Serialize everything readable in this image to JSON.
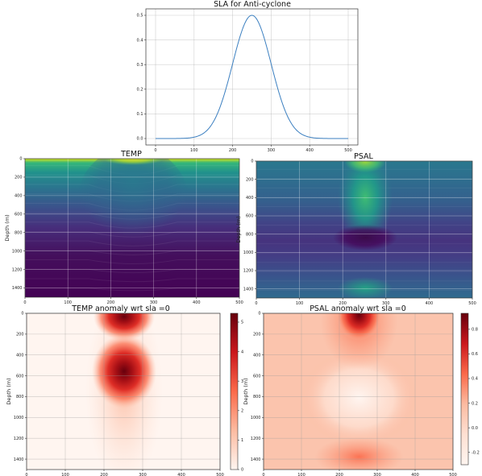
{
  "chart_data": [
    {
      "type": "line",
      "title": "SLA for Anti-cyclone",
      "x_ticks": [
        0,
        100,
        200,
        300,
        400,
        500
      ],
      "y_ticks": [
        0.0,
        0.1,
        0.2,
        0.3,
        0.4,
        0.5
      ],
      "xlim": [
        0,
        500
      ],
      "ylim": [
        0,
        0.5
      ],
      "grid": true,
      "series": [
        {
          "color": "#3b7fc0",
          "x": [
            0,
            50,
            100,
            125,
            150,
            175,
            200,
            212,
            225,
            237,
            250,
            262,
            275,
            287,
            300,
            325,
            350,
            375,
            400,
            450,
            500
          ],
          "y": [
            0.0,
            0.0,
            0.0,
            0.001,
            0.006,
            0.027,
            0.1,
            0.167,
            0.25,
            0.334,
            0.5,
            0.334,
            0.25,
            0.167,
            0.1,
            0.027,
            0.006,
            0.001,
            0.0,
            0.0,
            0.0
          ]
        }
      ]
    },
    {
      "type": "heatmap",
      "title": "TEMP",
      "ylabel": "Depth (m)",
      "x_ticks": [
        0,
        100,
        200,
        300,
        400,
        500
      ],
      "y_ticks": [
        0,
        200,
        400,
        600,
        800,
        1000,
        1200,
        1400
      ],
      "xlim": [
        0,
        500
      ],
      "ylim": [
        1500,
        0
      ],
      "colormap": "viridis",
      "grid": true
    },
    {
      "type": "heatmap",
      "title": "PSAL",
      "ylabel": "Depth (m)",
      "x_ticks": [
        0,
        100,
        200,
        300,
        400,
        500
      ],
      "y_ticks": [
        0,
        200,
        400,
        600,
        800,
        1000,
        1200,
        1400
      ],
      "xlim": [
        0,
        500
      ],
      "ylim": [
        1500,
        0
      ],
      "colormap": "viridis",
      "grid": true
    },
    {
      "type": "heatmap",
      "title": "TEMP anomaly wrt sla =0",
      "ylabel": "Depth (m)",
      "x_ticks": [
        0,
        100,
        200,
        300,
        400,
        500
      ],
      "y_ticks": [
        0,
        200,
        400,
        600,
        800,
        1000,
        1200,
        1400
      ],
      "xlim": [
        0,
        500
      ],
      "ylim": [
        1500,
        0
      ],
      "colormap": "Reds",
      "colorbar_ticks": [
        0,
        1,
        2,
        3,
        4,
        5
      ],
      "colorbar_range": [
        0,
        5.3
      ],
      "grid": true
    },
    {
      "type": "heatmap",
      "title": "PSAL anomaly wrt sla =0",
      "ylabel": "Depth (m)",
      "x_ticks": [
        0,
        100,
        200,
        300,
        400,
        500
      ],
      "y_ticks": [
        0,
        200,
        400,
        600,
        800,
        1000,
        1200,
        1400
      ],
      "xlim": [
        0,
        500
      ],
      "ylim": [
        1500,
        0
      ],
      "colormap": "Reds",
      "colorbar_ticks": [
        -0.2,
        0.0,
        0.2,
        0.4,
        0.6,
        0.8
      ],
      "colorbar_range": [
        -0.3,
        0.93
      ],
      "grid": true
    }
  ]
}
